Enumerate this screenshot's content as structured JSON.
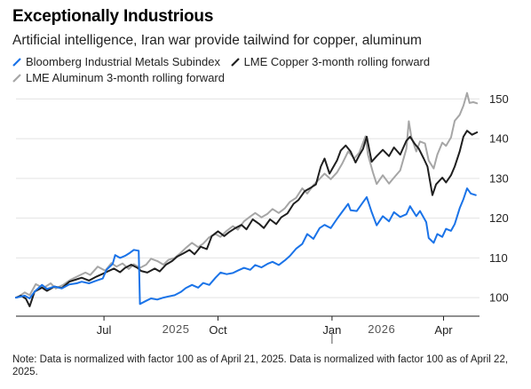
{
  "title": "Exceptionally Industrious",
  "subtitle": "Artificial intelligence, Iran war provide tailwind for copper, aluminum",
  "note": "Note: Data is normalized with factor 100 as of April 21, 2025. Data is normalized with factor 100 as of April 22, 2025.",
  "colors": {
    "blue": "#1a73e8",
    "black": "#1f1f1f",
    "gray": "#a6a6a6",
    "grid": "#e3e3e3"
  },
  "chart_data": {
    "type": "line",
    "x_type": "date",
    "xlim": [
      "2025-04-21",
      "2026-04-30"
    ],
    "ylim": [
      96,
      153
    ],
    "y_ticks": [
      "100",
      "110",
      "120",
      "130",
      "140",
      "150"
    ],
    "x_ticks": [
      {
        "label": "Jul",
        "date": "2025-07-01"
      },
      {
        "label": "Oct",
        "date": "2025-10-01"
      },
      {
        "label": "Jan",
        "date": "2026-01-01"
      },
      {
        "label": "Apr",
        "date": "2026-04-01"
      }
    ],
    "year_labels": [
      {
        "label": "2025",
        "date": "2025-08-28"
      },
      {
        "label": "2026",
        "date": "2026-02-10"
      }
    ],
    "year_divider": "2026-01-01",
    "legend_placement": "top",
    "series": [
      {
        "name": "Bloomberg Industrial Metals Subindex",
        "color": "#1a73e8",
        "points": [
          [
            "2025-04-21",
            100
          ],
          [
            "2025-04-28",
            100.5
          ],
          [
            "2025-05-02",
            99.8
          ],
          [
            "2025-05-06",
            101.5
          ],
          [
            "2025-05-12",
            103.2
          ],
          [
            "2025-05-16",
            102.2
          ],
          [
            "2025-05-22",
            102.8
          ],
          [
            "2025-05-28",
            102.3
          ],
          [
            "2025-06-03",
            103.3
          ],
          [
            "2025-06-09",
            103.6
          ],
          [
            "2025-06-13",
            104
          ],
          [
            "2025-06-19",
            103.6
          ],
          [
            "2025-06-25",
            104.3
          ],
          [
            "2025-06-30",
            104.8
          ],
          [
            "2025-07-03",
            107
          ],
          [
            "2025-07-08",
            108.5
          ],
          [
            "2025-07-10",
            110.7
          ],
          [
            "2025-07-14",
            110
          ],
          [
            "2025-07-18",
            110.5
          ],
          [
            "2025-07-22",
            111.3
          ],
          [
            "2025-07-25",
            112
          ],
          [
            "2025-07-29",
            111.8
          ],
          [
            "2025-07-30",
            98.4
          ],
          [
            "2025-08-04",
            99.2
          ],
          [
            "2025-08-08",
            99.8
          ],
          [
            "2025-08-13",
            99.5
          ],
          [
            "2025-08-18",
            100
          ],
          [
            "2025-08-22",
            100.3
          ],
          [
            "2025-08-27",
            100.6
          ],
          [
            "2025-09-01",
            101.4
          ],
          [
            "2025-09-05",
            102.4
          ],
          [
            "2025-09-10",
            103.2
          ],
          [
            "2025-09-15",
            102.5
          ],
          [
            "2025-09-19",
            103.7
          ],
          [
            "2025-09-24",
            103.2
          ],
          [
            "2025-09-29",
            105
          ],
          [
            "2025-10-03",
            106.3
          ],
          [
            "2025-10-08",
            105.9
          ],
          [
            "2025-10-13",
            106.2
          ],
          [
            "2025-10-17",
            106.8
          ],
          [
            "2025-10-22",
            107.5
          ],
          [
            "2025-10-27",
            107
          ],
          [
            "2025-10-31",
            108.2
          ],
          [
            "2025-11-05",
            107.6
          ],
          [
            "2025-11-10",
            108.5
          ],
          [
            "2025-11-14",
            109
          ],
          [
            "2025-11-19",
            108.2
          ],
          [
            "2025-11-24",
            109.4
          ],
          [
            "2025-11-28",
            110.5
          ],
          [
            "2025-12-03",
            112.3
          ],
          [
            "2025-12-08",
            113.5
          ],
          [
            "2025-12-12",
            116
          ],
          [
            "2025-12-17",
            114.8
          ],
          [
            "2025-12-22",
            117.5
          ],
          [
            "2025-12-26",
            118.3
          ],
          [
            "2025-12-31",
            117.5
          ],
          [
            "2026-01-05",
            119.8
          ],
          [
            "2026-01-09",
            121.5
          ],
          [
            "2026-01-14",
            123.6
          ],
          [
            "2026-01-16",
            122
          ],
          [
            "2026-01-21",
            121.8
          ],
          [
            "2026-01-26",
            124
          ],
          [
            "2026-01-29",
            125.3
          ],
          [
            "2026-02-02",
            121.5
          ],
          [
            "2026-02-06",
            118.2
          ],
          [
            "2026-02-11",
            120.5
          ],
          [
            "2026-02-16",
            119.2
          ],
          [
            "2026-02-20",
            121.5
          ],
          [
            "2026-02-25",
            120.3
          ],
          [
            "2026-03-02",
            121
          ],
          [
            "2026-03-05",
            123
          ],
          [
            "2026-03-10",
            120.5
          ],
          [
            "2026-03-13",
            121.8
          ],
          [
            "2026-03-18",
            119
          ],
          [
            "2026-03-20",
            115
          ],
          [
            "2026-03-24",
            113.8
          ],
          [
            "2026-03-27",
            116
          ],
          [
            "2026-03-31",
            115.3
          ],
          [
            "2026-04-03",
            117.3
          ],
          [
            "2026-04-07",
            116.8
          ],
          [
            "2026-04-10",
            118.5
          ],
          [
            "2026-04-14",
            122.5
          ],
          [
            "2026-04-17",
            124.8
          ],
          [
            "2026-04-20",
            127.5
          ],
          [
            "2026-04-23",
            126.2
          ],
          [
            "2026-04-27",
            125.8
          ]
        ]
      },
      {
        "name": "LME Copper 3-month rolling forward",
        "color": "#1f1f1f",
        "points": [
          [
            "2025-04-21",
            100
          ],
          [
            "2025-04-25",
            100.5
          ],
          [
            "2025-04-29",
            99.7
          ],
          [
            "2025-05-02",
            97.8
          ],
          [
            "2025-05-06",
            101.5
          ],
          [
            "2025-05-12",
            102.5
          ],
          [
            "2025-05-16",
            101.7
          ],
          [
            "2025-05-22",
            102.8
          ],
          [
            "2025-05-28",
            102.4
          ],
          [
            "2025-06-03",
            104
          ],
          [
            "2025-06-09",
            104.6
          ],
          [
            "2025-06-13",
            105
          ],
          [
            "2025-06-19",
            104.3
          ],
          [
            "2025-06-25",
            105.3
          ],
          [
            "2025-06-30",
            106
          ],
          [
            "2025-07-04",
            106.6
          ],
          [
            "2025-07-09",
            107.3
          ],
          [
            "2025-07-14",
            106.4
          ],
          [
            "2025-07-18",
            107.5
          ],
          [
            "2025-07-23",
            108.3
          ],
          [
            "2025-07-28",
            107.5
          ],
          [
            "2025-07-31",
            106.7
          ],
          [
            "2025-08-05",
            106.3
          ],
          [
            "2025-08-11",
            107.3
          ],
          [
            "2025-08-15",
            106.6
          ],
          [
            "2025-08-20",
            108.3
          ],
          [
            "2025-08-25",
            109.2
          ],
          [
            "2025-08-29",
            110.3
          ],
          [
            "2025-09-03",
            111.1
          ],
          [
            "2025-09-08",
            112
          ],
          [
            "2025-09-12",
            110.9
          ],
          [
            "2025-09-17",
            112.8
          ],
          [
            "2025-09-22",
            112.2
          ],
          [
            "2025-09-26",
            115.5
          ],
          [
            "2025-10-01",
            116.7
          ],
          [
            "2025-10-06",
            115.5
          ],
          [
            "2025-10-10",
            116.5
          ],
          [
            "2025-10-15",
            117.5
          ],
          [
            "2025-10-20",
            118.3
          ],
          [
            "2025-10-24",
            117.2
          ],
          [
            "2025-10-29",
            119.7
          ],
          [
            "2025-11-03",
            118.6
          ],
          [
            "2025-11-07",
            117.5
          ],
          [
            "2025-11-12",
            119.7
          ],
          [
            "2025-11-17",
            118.5
          ],
          [
            "2025-11-21",
            120.2
          ],
          [
            "2025-11-26",
            121.2
          ],
          [
            "2025-12-01",
            123.6
          ],
          [
            "2025-12-05",
            124.6
          ],
          [
            "2025-12-10",
            126.8
          ],
          [
            "2025-12-15",
            127.7
          ],
          [
            "2025-12-19",
            128.5
          ],
          [
            "2025-12-23",
            133
          ],
          [
            "2025-12-26",
            135
          ],
          [
            "2025-12-30",
            131.2
          ],
          [
            "2026-01-05",
            134.5
          ],
          [
            "2026-01-08",
            137
          ],
          [
            "2026-01-12",
            138.3
          ],
          [
            "2026-01-16",
            136.8
          ],
          [
            "2026-01-20",
            134
          ],
          [
            "2026-01-23",
            135.8
          ],
          [
            "2026-01-26",
            137.4
          ],
          [
            "2026-01-29",
            140.5
          ],
          [
            "2026-02-02",
            134.2
          ],
          [
            "2026-02-06",
            135.6
          ],
          [
            "2026-02-11",
            137.2
          ],
          [
            "2026-02-16",
            135.6
          ],
          [
            "2026-02-20",
            137.8
          ],
          [
            "2026-02-25",
            136
          ],
          [
            "2026-03-02",
            139.5
          ],
          [
            "2026-03-05",
            140.5
          ],
          [
            "2026-03-09",
            138.6
          ],
          [
            "2026-03-12",
            137.5
          ],
          [
            "2026-03-16",
            135
          ],
          [
            "2026-03-19",
            133
          ],
          [
            "2026-03-23",
            125.8
          ],
          [
            "2026-03-26",
            128.5
          ],
          [
            "2026-03-31",
            130.2
          ],
          [
            "2026-04-03",
            129
          ],
          [
            "2026-04-07",
            130.8
          ],
          [
            "2026-04-10",
            133
          ],
          [
            "2026-04-14",
            136.8
          ],
          [
            "2026-04-17",
            140.5
          ],
          [
            "2026-04-20",
            142
          ],
          [
            "2026-04-24",
            141
          ],
          [
            "2026-04-28",
            141.6
          ]
        ]
      },
      {
        "name": "LME Aluminum 3-month rolling forward",
        "color": "#a6a6a6",
        "points": [
          [
            "2025-04-22",
            100
          ],
          [
            "2025-04-28",
            101.3
          ],
          [
            "2025-05-02",
            100.6
          ],
          [
            "2025-05-07",
            103.4
          ],
          [
            "2025-05-13",
            102.4
          ],
          [
            "2025-05-19",
            103.6
          ],
          [
            "2025-05-23",
            102.3
          ],
          [
            "2025-05-29",
            103.2
          ],
          [
            "2025-06-04",
            104.5
          ],
          [
            "2025-06-10",
            105.4
          ],
          [
            "2025-06-16",
            106.3
          ],
          [
            "2025-06-20",
            105.7
          ],
          [
            "2025-06-26",
            107.8
          ],
          [
            "2025-07-02",
            106.8
          ],
          [
            "2025-07-07",
            108.7
          ],
          [
            "2025-07-11",
            107.8
          ],
          [
            "2025-07-16",
            108.6
          ],
          [
            "2025-07-21",
            107.2
          ],
          [
            "2025-07-25",
            108.4
          ],
          [
            "2025-07-30",
            107.5
          ],
          [
            "2025-08-04",
            108.3
          ],
          [
            "2025-08-08",
            109.8
          ],
          [
            "2025-08-13",
            109.2
          ],
          [
            "2025-08-18",
            108.3
          ],
          [
            "2025-08-22",
            109.5
          ],
          [
            "2025-08-27",
            110
          ],
          [
            "2025-09-01",
            111.3
          ],
          [
            "2025-09-05",
            112.5
          ],
          [
            "2025-09-10",
            113.8
          ],
          [
            "2025-09-15",
            112.7
          ],
          [
            "2025-09-19",
            113.6
          ],
          [
            "2025-09-24",
            115.2
          ],
          [
            "2025-09-29",
            116
          ],
          [
            "2025-10-03",
            115.3
          ],
          [
            "2025-10-08",
            116.8
          ],
          [
            "2025-10-13",
            118
          ],
          [
            "2025-10-17",
            117.1
          ],
          [
            "2025-10-22",
            119.2
          ],
          [
            "2025-10-27",
            120.4
          ],
          [
            "2025-10-31",
            121.3
          ],
          [
            "2025-11-05",
            120.2
          ],
          [
            "2025-11-10",
            121.1
          ],
          [
            "2025-11-14",
            122.3
          ],
          [
            "2025-11-19",
            121.3
          ],
          [
            "2025-11-24",
            122.5
          ],
          [
            "2025-11-28",
            124.1
          ],
          [
            "2025-12-03",
            125.1
          ],
          [
            "2025-12-08",
            127.5
          ],
          [
            "2025-12-12",
            126.2
          ],
          [
            "2025-12-17",
            128.3
          ],
          [
            "2025-12-22",
            129.9
          ],
          [
            "2025-12-26",
            131.2
          ],
          [
            "2025-12-31",
            129.8
          ],
          [
            "2026-01-05",
            131.5
          ],
          [
            "2026-01-09",
            133.6
          ],
          [
            "2026-01-14",
            136.8
          ],
          [
            "2026-01-19",
            135
          ],
          [
            "2026-01-23",
            136.5
          ],
          [
            "2026-01-28",
            140.6
          ],
          [
            "2026-01-30",
            136
          ],
          [
            "2026-02-03",
            131.5
          ],
          [
            "2026-02-06",
            128.6
          ],
          [
            "2026-02-11",
            130.8
          ],
          [
            "2026-02-16",
            128.7
          ],
          [
            "2026-02-20",
            130.2
          ],
          [
            "2026-02-25",
            132
          ],
          [
            "2026-03-02",
            137.5
          ],
          [
            "2026-03-04",
            144.4
          ],
          [
            "2026-03-06",
            140.5
          ],
          [
            "2026-03-10",
            136.8
          ],
          [
            "2026-03-13",
            139.3
          ],
          [
            "2026-03-17",
            138.8
          ],
          [
            "2026-03-20",
            134.5
          ],
          [
            "2026-03-24",
            132.5
          ],
          [
            "2026-03-27",
            136
          ],
          [
            "2026-03-31",
            139
          ],
          [
            "2026-04-03",
            138.2
          ],
          [
            "2026-04-07",
            140.3
          ],
          [
            "2026-04-10",
            144.5
          ],
          [
            "2026-04-14",
            146
          ],
          [
            "2026-04-17",
            148.3
          ],
          [
            "2026-04-20",
            151.5
          ],
          [
            "2026-04-22",
            149
          ],
          [
            "2026-04-25",
            149.2
          ],
          [
            "2026-04-28",
            148.9
          ]
        ]
      }
    ]
  }
}
